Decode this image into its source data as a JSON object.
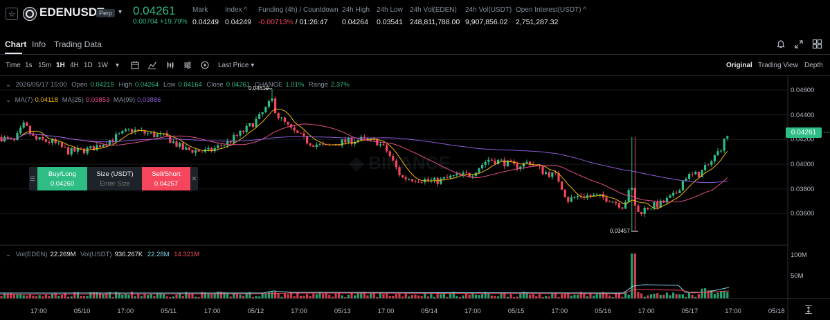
{
  "header": {
    "symbol": "EDENUSDT",
    "contract_type": "Perp",
    "last_price": "0.04261",
    "change": "0.00704 +19.79%",
    "stats": [
      {
        "label": "Mark",
        "value": "0.04249"
      },
      {
        "label": "Index ^",
        "value": "0.04249"
      },
      {
        "label": "Funding (4h) / Countdown",
        "value_a": "-0.00713%",
        "value_b": "/ 01:26:47"
      },
      {
        "label": "24h High",
        "value": "0.04264"
      },
      {
        "label": "24h Low",
        "value": "0.03541"
      },
      {
        "label": "24h Vol(EDEN)",
        "value": "248,811,788.00"
      },
      {
        "label": "24h Vol(USDT)",
        "value": "9,907,856.02"
      },
      {
        "label": "Open Interest(USDT) ^",
        "value": "2,751,287.32"
      }
    ]
  },
  "tabs": [
    "Chart",
    "Info",
    "Trading Data"
  ],
  "toolbar": {
    "intervals": [
      "Time",
      "1s",
      "15m",
      "1H",
      "4H",
      "1D",
      "1W"
    ],
    "active_interval": "1H",
    "price_type": "Last Price",
    "views": [
      "Original",
      "Trading View",
      "Depth"
    ],
    "active_view": "Original"
  },
  "ohlc": {
    "date": "2026/05/17 15:00",
    "open_label": "Open",
    "open": "0.04215",
    "high_label": "High",
    "high": "0.04264",
    "low_label": "Low",
    "low": "0.04164",
    "close_label": "Close",
    "close": "0.04261",
    "change_label": "CHANGE",
    "change": "1.01%",
    "range_label": "Range",
    "range": "2.37%"
  },
  "ma": {
    "ma7_label": "MA(7)",
    "ma7": "0.04118",
    "ma25_label": "MA(25)",
    "ma25": "0.03853",
    "ma99_label": "MA(99)",
    "ma99": "0.03886"
  },
  "volume_legend": {
    "vol_eden_label": "Vol(EDEN)",
    "vol_eden": "22.269M",
    "vol_usdt_label": "Vol(USDT)",
    "vol_usdt": "936.267K",
    "ma1": "22.28M",
    "ma2": "14.321M"
  },
  "order_panel": {
    "buy_label": "Buy/Long",
    "buy_price": "0.04260",
    "size_label": "Size (USDT)",
    "size_placeholder": "Enter Size",
    "sell_label": "Sell/Short",
    "sell_price": "0.04257"
  },
  "price_axis": [
    "0.04600",
    "0.04400",
    "0.04200",
    "0.04000",
    "0.03800",
    "0.03600"
  ],
  "current_price_tag": "0.04261",
  "volume_axis": [
    "100M",
    "50M"
  ],
  "time_axis": [
    "17:00",
    "05/10",
    "17:00",
    "05/11",
    "17:00",
    "05/12",
    "17:00",
    "05/13",
    "17:00",
    "05/14",
    "17:00",
    "05/15",
    "17:00",
    "05/16",
    "17:00",
    "05/17",
    "17:00",
    "05/18"
  ],
  "annotations": {
    "high_marker": "0.04610",
    "low_marker": "0.03457"
  },
  "colors": {
    "up": "#2ebd85",
    "down": "#f6465d",
    "ma7": "#f0b90b",
    "ma25": "#e84f8c",
    "ma99": "#8e5bd6",
    "bg": "#000000"
  }
}
